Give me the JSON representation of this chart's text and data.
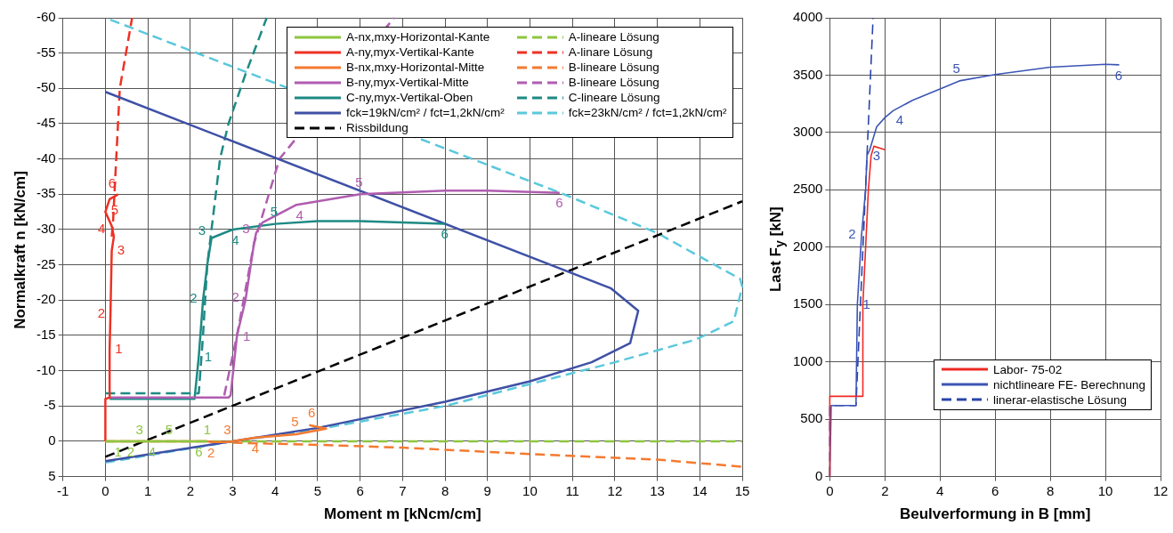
{
  "chart_data": [
    {
      "type": "line",
      "xlabel": "Moment m [kNcm/cm]",
      "ylabel": "Normalkraft  n [kN/cm]",
      "xlim": [
        -1,
        15
      ],
      "xticks": [
        -1,
        0,
        1,
        2,
        3,
        4,
        5,
        6,
        7,
        8,
        9,
        10,
        11,
        12,
        13,
        14,
        15
      ],
      "ylim": [
        5,
        -60
      ],
      "yticks": [
        5,
        0,
        -5,
        -10,
        -15,
        -20,
        -25,
        -30,
        -35,
        -40,
        -45,
        -50,
        -55,
        -60
      ],
      "grid": true,
      "legend": "top right",
      "annotations": [
        {
          "text": "1",
          "x": 2.4,
          "y": 0
        },
        {
          "text": "2",
          "x": 2.5,
          "y": 0.1
        },
        {
          "text": "3",
          "x": 2.9,
          "y": 0.1
        },
        {
          "text": "4",
          "x": 3.5,
          "y": -0.5
        },
        {
          "text": "5",
          "x": 4.5,
          "y": -1
        },
        {
          "text": "1",
          "x": 0.3,
          "y": 0
        },
        {
          "text": "6",
          "x": 4.8,
          "y": -2.3
        },
        {
          "text": "2",
          "x": 0.6,
          "y": 0
        },
        {
          "text": "3",
          "x": 0.8,
          "y": 0
        },
        {
          "text": "4",
          "x": 1.1,
          "y": 0
        },
        {
          "text": "5",
          "x": 1.5,
          "y": 0
        },
        {
          "text": "6",
          "x": 2.2,
          "y": 0
        },
        {
          "text": "1",
          "x": 0.1,
          "y": -13
        },
        {
          "text": "2",
          "x": 0.12,
          "y": -18
        },
        {
          "text": "3",
          "x": 0.15,
          "y": -27
        },
        {
          "text": "4",
          "x": 0.15,
          "y": -30.5
        },
        {
          "text": "5",
          "x": 0,
          "y": -32.5
        },
        {
          "text": "6",
          "x": 0.3,
          "y": -35
        },
        {
          "text": "1",
          "x": 3.1,
          "y": -15
        },
        {
          "text": "2",
          "x": 3.3,
          "y": -20
        },
        {
          "text": "3",
          "x": 3.55,
          "y": -29.5
        },
        {
          "text": "4",
          "x": 4.5,
          "y": -33.5
        },
        {
          "text": "5",
          "x": 6,
          "y": -35
        },
        {
          "text": "6",
          "x": 10.7,
          "y": -35.2
        },
        {
          "text": "1",
          "x": 2.2,
          "y": -12
        },
        {
          "text": "2",
          "x": 2.3,
          "y": -20
        },
        {
          "text": "3",
          "x": 2.5,
          "y": -28.8
        },
        {
          "text": "4",
          "x": 3,
          "y": -30
        },
        {
          "text": "5",
          "x": 4,
          "y": -30.8
        },
        {
          "text": "6",
          "x": 8,
          "y": -30.8
        }
      ],
      "series": [
        {
          "name": "A-nx,mxy-Horizontal-Kante",
          "color": "#8dc63f",
          "line_style": "solid",
          "x": [
            0,
            0.3,
            0.6,
            0.8,
            1.1,
            1.5,
            2.2,
            2.4
          ],
          "values": [
            0,
            0,
            0,
            0,
            0,
            0,
            0,
            0
          ]
        },
        {
          "name": "A-ny,myx-Vertikal-Kante",
          "color": "#ee3124",
          "line_style": "solid",
          "x": [
            0,
            0,
            0.1,
            0.1,
            0.12,
            0.15,
            0.2,
            0.15,
            0,
            0.1,
            0.3
          ],
          "values": [
            0,
            -6,
            -6.2,
            -13,
            -18,
            -27,
            -29,
            -30.5,
            -32.5,
            -34.3,
            -35
          ]
        },
        {
          "name": "B-nx,mxy-Horizontal-Mitte",
          "color": "#f47a30",
          "line_style": "solid",
          "x": [
            0,
            2.4,
            2.5,
            2.9,
            3.5,
            4.5,
            5.2,
            4.8
          ],
          "values": [
            0,
            0,
            0.1,
            0.1,
            -0.5,
            -1,
            -1.8,
            -2.3
          ]
        },
        {
          "name": "B-ny,myx-Vertikal-Mitte",
          "color": "#b05db0",
          "line_style": "solid",
          "x": [
            0.1,
            2.9,
            2.95,
            3.1,
            3.3,
            3.5,
            3.55,
            3.7,
            4.5,
            6,
            8,
            9,
            10.7
          ],
          "values": [
            -6.2,
            -6.2,
            -6.5,
            -15,
            -20,
            -28,
            -29.5,
            -31,
            -33.5,
            -35,
            -35.5,
            -35.5,
            -35.2
          ]
        },
        {
          "name": "C-ny,myx-Vertikal-Oben",
          "color": "#1e8a84",
          "line_style": "solid",
          "x": [
            0.1,
            2.1,
            2.2,
            2.3,
            2.4,
            2.5,
            3,
            4,
            5,
            6,
            7,
            8
          ],
          "values": [
            -6,
            -6,
            -12,
            -20,
            -25,
            -28.8,
            -30,
            -30.8,
            -31.2,
            -31.2,
            -31,
            -30.8
          ]
        },
        {
          "name": "fck=19kN/cm² / fct=1,2kN/cm²",
          "color": "#3f51a6",
          "line_style": "solid",
          "x": [
            0,
            3,
            5,
            8,
            10,
            11.45,
            12.36,
            12.55,
            11.9,
            0
          ],
          "values": [
            2.8,
            0,
            -1.9,
            -5.6,
            -8.5,
            -11.2,
            -13.9,
            -18.5,
            -21.7,
            -49.5
          ]
        },
        {
          "name": "Rissbildung",
          "color": "#000000",
          "line_style": "dashed",
          "x": [
            0,
            15
          ],
          "values": [
            2.2,
            -34
          ]
        },
        {
          "name": "A-lineare Lösung",
          "color": "#8dc63f",
          "line_style": "dashed",
          "x": [
            0,
            15
          ],
          "values": [
            0,
            0
          ]
        },
        {
          "name": "A-linare Lösung",
          "color": "#ee3124",
          "line_style": "dashed",
          "x": [
            0.15,
            0.18,
            0.34,
            0.63
          ],
          "values": [
            -29,
            -31,
            -50,
            -60
          ]
        },
        {
          "name": "B-lineare Lösung",
          "color": "#f47a30",
          "line_style": "dashed",
          "x": [
            3,
            5,
            7,
            10,
            13,
            15
          ],
          "values": [
            0.2,
            0.5,
            0.9,
            1.8,
            2.6,
            3.6
          ]
        },
        {
          "name": "B-lineare Lösung",
          "color": "#b05db0",
          "line_style": "dashed",
          "x": [
            2.8,
            3.1,
            3.5,
            4.1,
            6.8
          ],
          "values": [
            -6.5,
            -15,
            -28,
            -40,
            -60
          ]
        },
        {
          "name": "C-lineare Lösung",
          "color": "#1e8a84",
          "line_style": "dashed",
          "x": [
            0,
            2.2,
            2.3,
            2.4,
            2.5,
            2.7,
            2.9,
            3.3,
            3.8
          ],
          "values": [
            -6.8,
            -6.8,
            -15,
            -25,
            -30,
            -40,
            -45,
            -52,
            -60
          ]
        },
        {
          "name": "fck=23kN/cm² / fct=1,2kN/cm²",
          "color": "#5bc8dc",
          "line_style": "dashed",
          "x": [
            0,
            3,
            5,
            8,
            12,
            13.9,
            14.8,
            15,
            14.95,
            13,
            10.8,
            0
          ],
          "values": [
            3,
            0,
            -1.7,
            -5,
            -11.2,
            -14.4,
            -17,
            -21.9,
            -23,
            -29.5,
            -35,
            -60
          ]
        }
      ]
    },
    {
      "type": "line",
      "xlabel": "Beulverformung in B [mm]",
      "ylabel": "Last  F$_{y}$ [kN]",
      "xlim": [
        0,
        12
      ],
      "xticks": [
        0,
        2,
        4,
        6,
        8,
        10,
        12
      ],
      "ylim": [
        0,
        4000
      ],
      "yticks": [
        0,
        500,
        1000,
        1500,
        2000,
        2500,
        3000,
        3500,
        4000
      ],
      "grid": true,
      "legend": "bottom right",
      "annotations": [
        {
          "text": "1",
          "x": 1.0,
          "y": 1500
        },
        {
          "text": "2",
          "x": 1.15,
          "y": 2100
        },
        {
          "text": "3",
          "x": 1.35,
          "y": 2800
        },
        {
          "text": "4",
          "x": 2.3,
          "y": 3190
        },
        {
          "text": "5",
          "x": 4.7,
          "y": 3450
        },
        {
          "text": "6",
          "x": 10.5,
          "y": 3590
        }
      ],
      "series": [
        {
          "name": "Labor- 75-02",
          "color": "#ee2a24",
          "line_style": "solid",
          "x": [
            0,
            0,
            1.2,
            1.2,
            1.3,
            1.4,
            1.5,
            1.6,
            2
          ],
          "values": [
            0,
            700,
            700,
            1500,
            2000,
            2500,
            2800,
            2880,
            2850
          ]
        },
        {
          "name": "nichtlineare FE- Berechnung",
          "color": "#3c55b5",
          "line_style": "solid",
          "x": [
            0,
            0.05,
            0.95,
            1.0,
            1.15,
            1.3,
            1.35,
            1.45,
            1.7,
            2,
            2.3,
            3,
            4,
            4.7,
            6,
            8,
            10,
            10.5
          ],
          "values": [
            0,
            620,
            620,
            1500,
            2100,
            2500,
            2800,
            2850,
            3050,
            3130,
            3190,
            3280,
            3380,
            3450,
            3505,
            3570,
            3595,
            3590
          ]
        },
        {
          "name": "linerar-elastische Lösung",
          "color": "#2a44a8",
          "line_style": "dashed",
          "x": [
            0,
            0,
            0.95,
            1.57
          ],
          "values": [
            0,
            620,
            620,
            4000
          ]
        }
      ]
    }
  ]
}
